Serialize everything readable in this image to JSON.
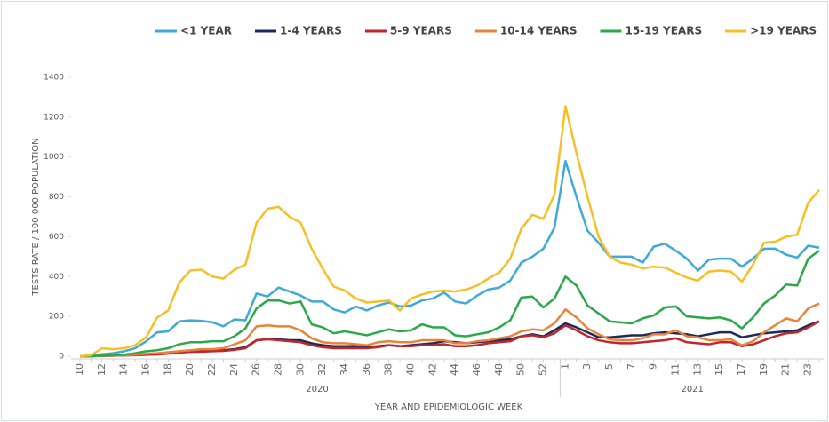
{
  "chart_data": {
    "type": "line",
    "y_label": "TESTS RATE / 100 000 POPULATION",
    "x_label": "YEAR AND EPIDEMIOLOGIC WEEK",
    "groups": [
      {
        "label": "2020",
        "categories": [
          "10",
          null,
          "12",
          null,
          "14",
          null,
          "16",
          null,
          "18",
          null,
          "20",
          null,
          "22",
          null,
          "24",
          null,
          "26",
          null,
          "28",
          null,
          "30",
          null,
          "32",
          null,
          "34",
          null,
          "36",
          null,
          "38",
          null,
          "40",
          null,
          "42",
          null,
          "44",
          null,
          "46",
          null,
          "48",
          null,
          "50",
          null,
          "52",
          null
        ]
      },
      {
        "label": "2021",
        "categories": [
          "1",
          null,
          "3",
          null,
          "5",
          null,
          "7",
          null,
          "9",
          null,
          "11",
          null,
          "13",
          null,
          "15",
          null,
          "17",
          null,
          "19",
          null,
          "21",
          null,
          "23",
          null
        ]
      }
    ],
    "ylim": [
      0,
      1400
    ],
    "yticks": [
      0,
      200,
      400,
      600,
      800,
      1000,
      1200,
      1400
    ],
    "series": [
      {
        "name": "<1 YEAR",
        "color": "#3fa9d8",
        "values": [
          0,
          5,
          10,
          15,
          25,
          40,
          75,
          120,
          125,
          175,
          180,
          178,
          170,
          150,
          185,
          180,
          315,
          300,
          345,
          325,
          305,
          275,
          275,
          235,
          220,
          250,
          230,
          255,
          270,
          250,
          255,
          280,
          290,
          320,
          275,
          265,
          305,
          335,
          345,
          380,
          470,
          500,
          540,
          645,
          980,
          800,
          630,
          570,
          500,
          500,
          500,
          470,
          550,
          565,
          530,
          490,
          430,
          485,
          490,
          490,
          450,
          490,
          540,
          540,
          510,
          495,
          555,
          545
        ]
      },
      {
        "name": "1-4 YEARS",
        "color": "#1b2a5a",
        "values": [
          0,
          0,
          2,
          3,
          5,
          6,
          8,
          10,
          15,
          20,
          25,
          25,
          28,
          30,
          35,
          45,
          80,
          85,
          85,
          80,
          80,
          65,
          55,
          50,
          50,
          50,
          45,
          50,
          55,
          50,
          55,
          60,
          65,
          75,
          70,
          65,
          70,
          75,
          80,
          85,
          100,
          110,
          100,
          130,
          165,
          145,
          120,
          95,
          95,
          100,
          105,
          105,
          115,
          120,
          115,
          110,
          100,
          110,
          120,
          120,
          95,
          105,
          115,
          120,
          125,
          130,
          155,
          175
        ]
      },
      {
        "name": "5-9 YEARS",
        "color": "#c0272d",
        "values": [
          0,
          0,
          2,
          3,
          4,
          5,
          7,
          9,
          13,
          18,
          22,
          23,
          25,
          27,
          32,
          40,
          80,
          85,
          80,
          75,
          70,
          55,
          45,
          40,
          40,
          40,
          40,
          45,
          55,
          50,
          50,
          55,
          55,
          60,
          50,
          50,
          55,
          65,
          70,
          75,
          100,
          105,
          95,
          115,
          155,
          130,
          100,
          80,
          70,
          65,
          65,
          70,
          75,
          80,
          90,
          70,
          65,
          60,
          70,
          70,
          50,
          60,
          80,
          100,
          115,
          120,
          145,
          175
        ]
      },
      {
        "name": "10-14 YEARS",
        "color": "#e8843a",
        "values": [
          0,
          0,
          2,
          3,
          5,
          8,
          12,
          15,
          20,
          25,
          30,
          35,
          35,
          40,
          60,
          80,
          150,
          155,
          150,
          150,
          130,
          90,
          70,
          65,
          65,
          60,
          55,
          70,
          75,
          70,
          70,
          80,
          80,
          80,
          65,
          65,
          75,
          80,
          90,
          100,
          125,
          135,
          130,
          165,
          235,
          195,
          140,
          110,
          85,
          80,
          80,
          90,
          110,
          110,
          130,
          100,
          95,
          80,
          80,
          85,
          55,
          75,
          120,
          155,
          190,
          175,
          240,
          265
        ]
      },
      {
        "name": "15-19 YEARS",
        "color": "#2aa84a",
        "values": [
          0,
          0,
          3,
          5,
          8,
          15,
          25,
          30,
          40,
          60,
          70,
          70,
          75,
          75,
          100,
          140,
          240,
          280,
          280,
          265,
          275,
          160,
          145,
          115,
          125,
          115,
          105,
          120,
          135,
          125,
          130,
          160,
          145,
          145,
          105,
          100,
          110,
          120,
          145,
          180,
          295,
          300,
          245,
          290,
          400,
          355,
          255,
          215,
          175,
          170,
          165,
          190,
          205,
          245,
          250,
          200,
          195,
          190,
          195,
          180,
          140,
          195,
          265,
          305,
          360,
          355,
          490,
          530
        ]
      },
      {
        "name": ">19 YEARS",
        "color": "#f7bf26",
        "values": [
          0,
          5,
          40,
          35,
          40,
          55,
          95,
          195,
          230,
          370,
          430,
          435,
          400,
          390,
          435,
          460,
          670,
          740,
          750,
          700,
          670,
          540,
          440,
          350,
          330,
          290,
          270,
          275,
          280,
          230,
          290,
          310,
          325,
          330,
          325,
          335,
          355,
          390,
          420,
          490,
          640,
          710,
          690,
          810,
          1255,
          1020,
          800,
          600,
          500,
          470,
          460,
          440,
          450,
          445,
          420,
          395,
          380,
          425,
          430,
          425,
          375,
          460,
          570,
          575,
          600,
          610,
          770,
          835
        ]
      }
    ]
  }
}
